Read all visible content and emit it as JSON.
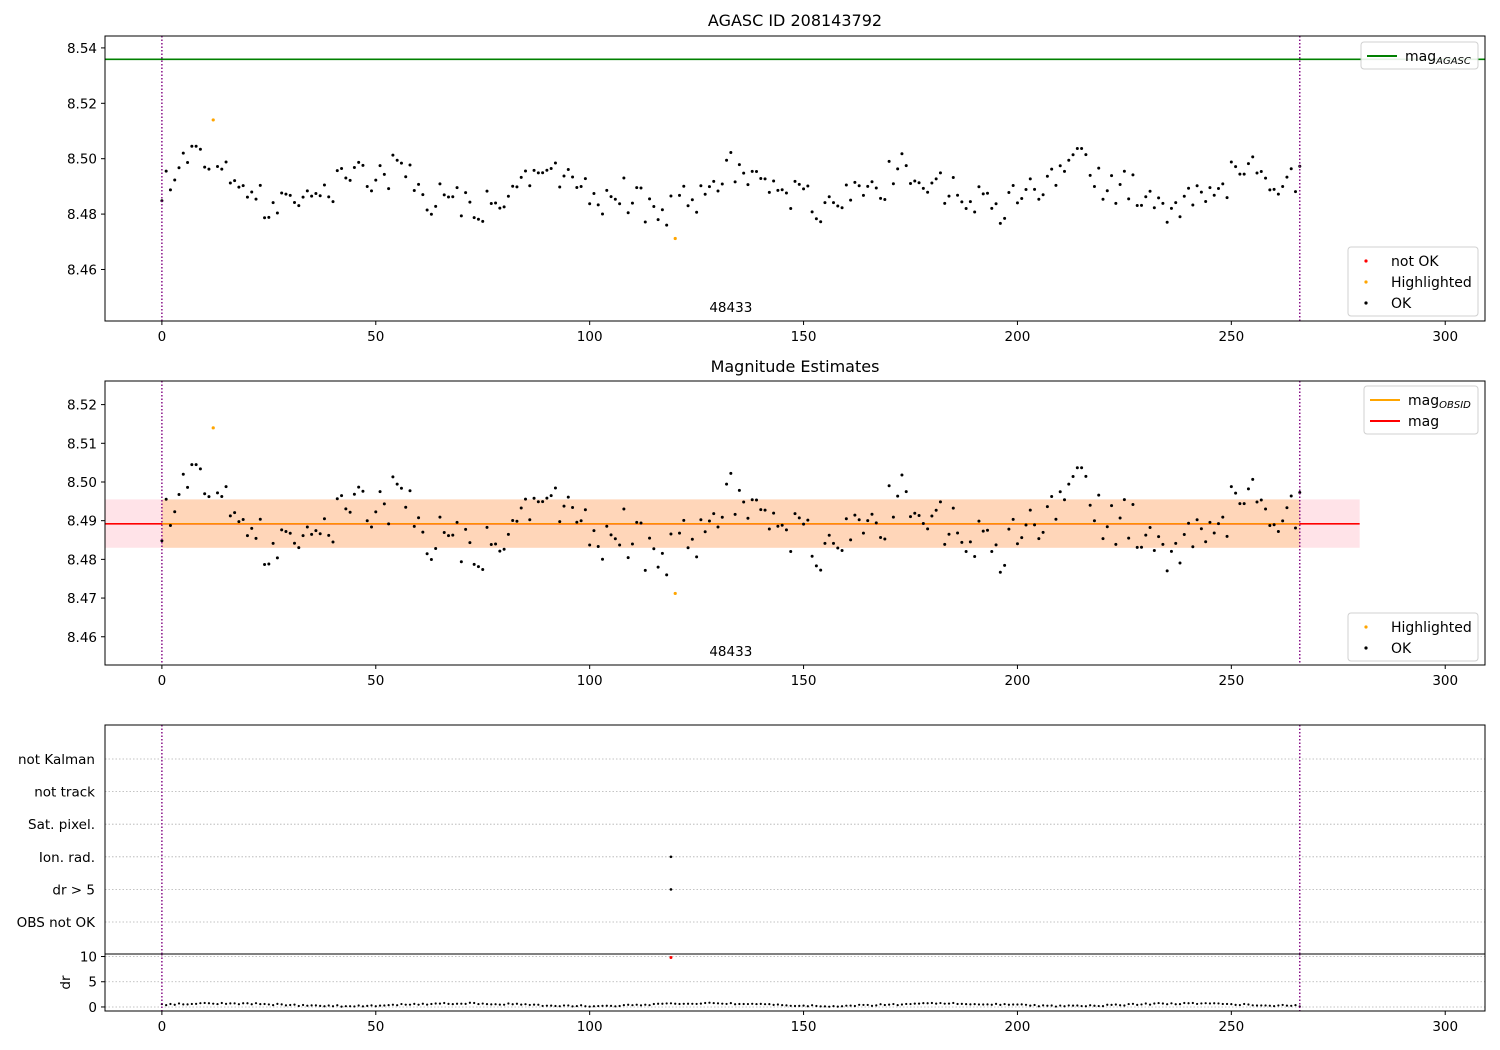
{
  "chart_data": [
    {
      "type": "scatter",
      "title": "AGASC ID 208143792",
      "xlim": [
        -13.3,
        309.3
      ],
      "ylim": [
        8.4414,
        8.5443
      ],
      "xticks": [
        0,
        50,
        100,
        150,
        200,
        250,
        300
      ],
      "yticks": [
        8.46,
        8.48,
        8.5,
        8.52,
        8.54
      ],
      "ytick_labels": [
        "8.46",
        "8.48",
        "8.50",
        "8.52",
        "8.54"
      ],
      "vlines": [
        0,
        266
      ],
      "obsid_label": {
        "text": "48433",
        "x": 133
      },
      "mag_agasc": 8.5359,
      "highlighted_points": [
        [
          12,
          8.514
        ],
        [
          120,
          8.4712
        ]
      ],
      "legend_lines": [
        {
          "label": "mag",
          "sub": "AGASC",
          "color": "#008000"
        }
      ],
      "legend_markers": [
        {
          "label": "not OK",
          "color": "#ff0000"
        },
        {
          "label": "Highlighted",
          "color": "#ffa500"
        },
        {
          "label": "OK",
          "color": "#000000"
        }
      ],
      "grid": false
    },
    {
      "type": "scatter",
      "title": "Magnitude Estimates",
      "xlim": [
        -13.3,
        309.3
      ],
      "ylim": [
        8.4527,
        8.5261
      ],
      "xticks": [
        0,
        50,
        100,
        150,
        200,
        250,
        300
      ],
      "yticks": [
        8.46,
        8.47,
        8.48,
        8.49,
        8.5,
        8.51,
        8.52
      ],
      "ytick_labels": [
        "8.46",
        "8.47",
        "8.48",
        "8.49",
        "8.50",
        "8.51",
        "8.52"
      ],
      "vlines": [
        0,
        266
      ],
      "obsid_label": {
        "text": "48433",
        "x": 133
      },
      "mag_mean": 8.4892,
      "mag_band": [
        8.483,
        8.4955
      ],
      "mag_obsid": 8.4892,
      "highlighted_points": [
        [
          12,
          8.514
        ],
        [
          120,
          8.4712
        ]
      ],
      "legend_lines": [
        {
          "label": "mag",
          "sub": "OBSID",
          "color": "#ffa500"
        },
        {
          "label": "mag",
          "sub": "",
          "color": "#ff0000"
        }
      ],
      "legend_markers": [
        {
          "label": "Highlighted",
          "color": "#ffa500"
        },
        {
          "label": "OK",
          "color": "#000000"
        }
      ],
      "grid": false
    },
    {
      "type": "scatter",
      "title": "",
      "xlim": [
        -13.3,
        309.3
      ],
      "categories": [
        "not Kalman",
        "not track",
        "Sat. pixel.",
        "Ion. rad.",
        "dr > 5",
        "OBS not OK"
      ],
      "flag_points": [
        {
          "category": "Ion. rad.",
          "x": 119
        },
        {
          "category": "dr > 5",
          "x": 119
        }
      ],
      "vlines": [
        0,
        266
      ],
      "grid": true
    },
    {
      "type": "scatter",
      "title": "",
      "ylabel": "dr",
      "xlim": [
        -13.3,
        309.3
      ],
      "ylim": [
        -0.8,
        10.5
      ],
      "xticks": [
        0,
        50,
        100,
        150,
        200,
        250,
        300
      ],
      "yticks": [
        0,
        5,
        10
      ],
      "ytick_labels": [
        "0",
        "5",
        "10"
      ],
      "dr_outlier": [
        119,
        9.8
      ],
      "vlines": [
        0,
        266
      ],
      "grid": true
    }
  ],
  "colors": {
    "ok": "#000000",
    "highlighted": "#ffa500",
    "not_ok": "#ff0000",
    "agasc_line": "#008000",
    "mag_line": "#ff0000",
    "vline": "#800080",
    "band_fill": "#ffc0cb"
  }
}
